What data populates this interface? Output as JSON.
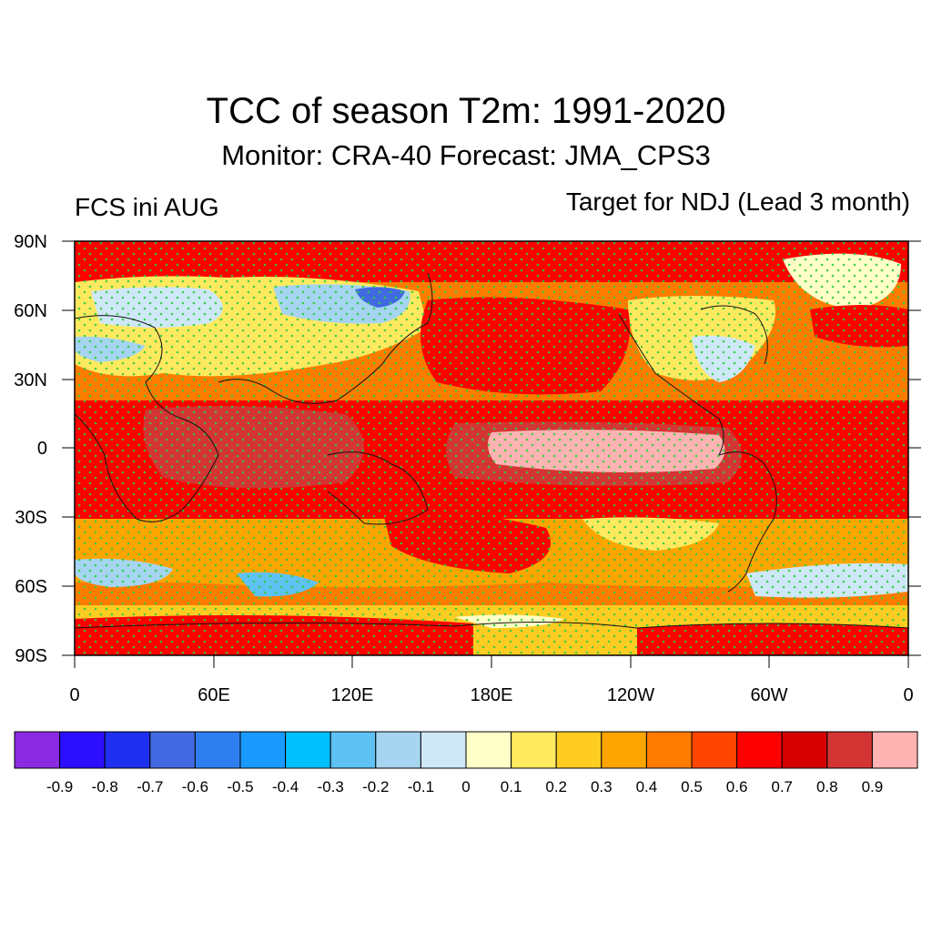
{
  "title": "TCC of season T2m: 1991-2020",
  "subtitle": "Monitor: CRA-40   Forecast: JMA_CPS3",
  "left_label": "FCS ini AUG",
  "right_label": "Target for NDJ (Lead 3 month)",
  "lat_labels": [
    "90N",
    "60N",
    "30N",
    "0",
    "30S",
    "60S",
    "90S"
  ],
  "lon_labels": [
    "0",
    "60E",
    "120E",
    "180E",
    "120W",
    "60W",
    "0"
  ],
  "colorbar": {
    "colors": [
      "#8a2be2",
      "#2c0fff",
      "#1e2ff0",
      "#4169e1",
      "#2e7ef0",
      "#1a9aff",
      "#00bfff",
      "#5ec3f2",
      "#a5d5f0",
      "#cfe8f8",
      "#ffffc8",
      "#ffe95f",
      "#ffcc22",
      "#ffa500",
      "#ff7c00",
      "#ff4500",
      "#ff0000",
      "#d70000",
      "#d43434",
      "#ffb3b3"
    ],
    "labels": [
      "-0.9",
      "-0.8",
      "-0.7",
      "-0.6",
      "-0.5",
      "-0.4",
      "-0.3",
      "-0.2",
      "-0.1",
      "0",
      "0.1",
      "0.2",
      "0.3",
      "0.4",
      "0.5",
      "0.6",
      "0.7",
      "0.8",
      "0.9"
    ]
  }
}
